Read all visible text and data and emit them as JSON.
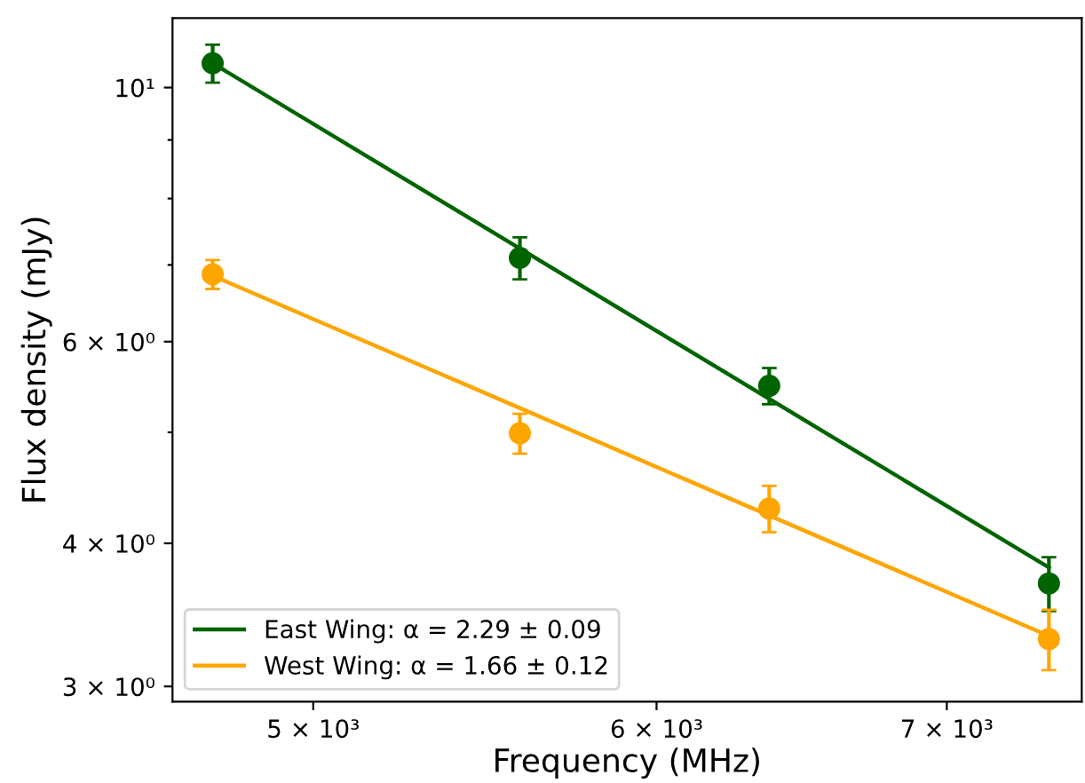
{
  "chart_data": {
    "type": "scatter",
    "xlabel": "Frequency (MHz)",
    "ylabel": "Flux density (mJy)",
    "log": "xy",
    "grid": false,
    "legend": "bottom left",
    "xlim": [
      4640,
      7520
    ],
    "ylim": [
      2.91,
      11.5
    ],
    "xticks": [
      {
        "value": 5000,
        "label": "5 × 10³"
      },
      {
        "value": 6000,
        "label": "6 × 10³"
      },
      {
        "value": 7000,
        "label": "7 × 10³"
      }
    ],
    "yticks": [
      {
        "value": 3,
        "label": "3 × 10⁰"
      },
      {
        "value": 4,
        "label": "4 × 10⁰"
      },
      {
        "value": 5,
        "label": null
      },
      {
        "value": 6,
        "label": "6 × 10⁰"
      },
      {
        "value": 7,
        "label": null
      },
      {
        "value": 8,
        "label": null
      },
      {
        "value": 9,
        "label": null
      },
      {
        "value": 10,
        "label": "10¹"
      }
    ],
    "series": [
      {
        "marker": "circle",
        "color": "#006400",
        "x": [
          4740,
          5580,
          6370,
          7390
        ],
        "values": [
          10.5,
          7.1,
          5.49,
          3.69
        ],
        "errors": [
          0.4,
          0.3,
          0.2,
          0.2
        ]
      },
      {
        "marker": "circle",
        "color": "#ffa500",
        "x": [
          4740,
          5580,
          6370,
          7390
        ],
        "values": [
          6.87,
          4.99,
          4.29,
          3.3
        ],
        "errors": [
          0.2,
          0.2,
          0.2,
          0.2
        ]
      },
      {
        "type": "line",
        "name": "East Wing: α = 2.29 ± 0.09",
        "color": "#006400",
        "x": [
          4740,
          7390
        ],
        "values": [
          10.5,
          3.81
        ]
      },
      {
        "type": "line",
        "name": "West Wing: α = 1.66 ± 0.12",
        "color": "#ffa500",
        "x": [
          4740,
          7390
        ],
        "values": [
          6.85,
          3.32
        ]
      }
    ]
  }
}
